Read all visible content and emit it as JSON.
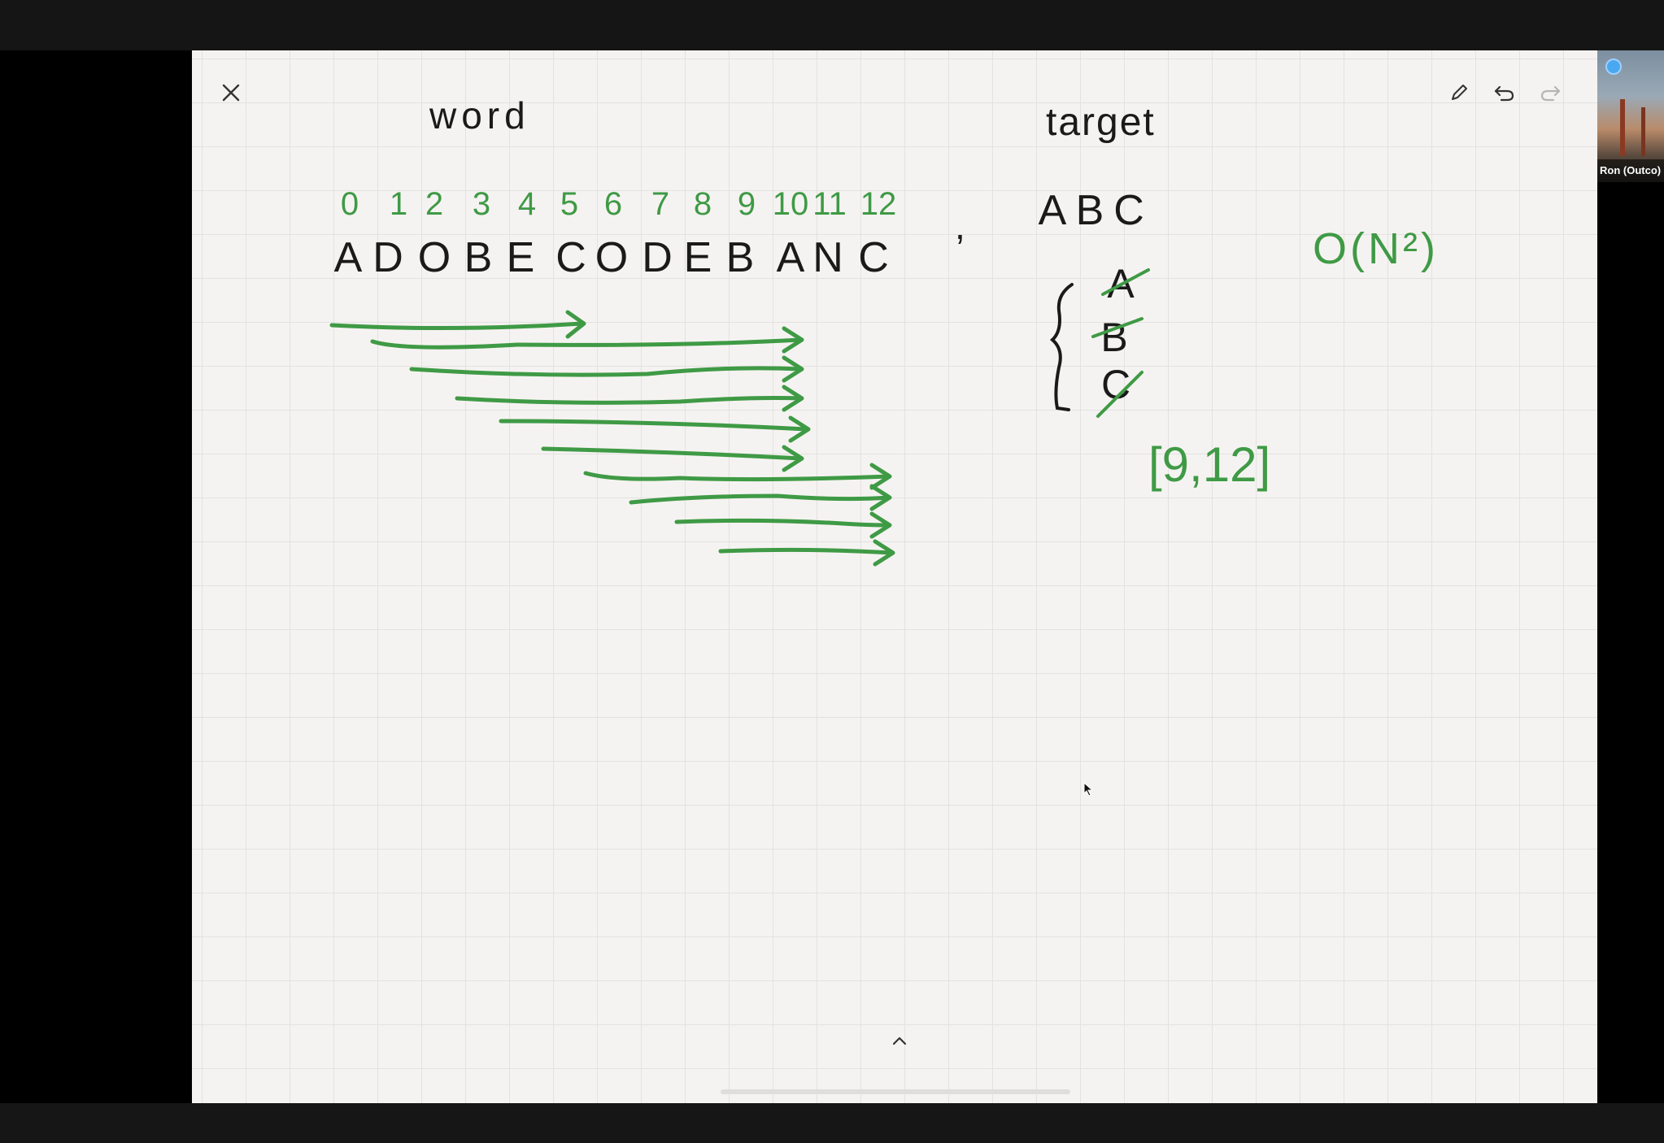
{
  "participant": {
    "name": "Ron (Outco)"
  },
  "whiteboard": {
    "word_label": "word",
    "target_label": "target",
    "index_labels": [
      "0",
      "1",
      "2",
      "3",
      "4",
      "5",
      "6",
      "7",
      "8",
      "9",
      "10",
      "11",
      "12"
    ],
    "word_letters": [
      "A",
      "D",
      "O",
      "B",
      "E",
      "C",
      "O",
      "D",
      "E",
      "B",
      "A",
      "N",
      "C"
    ],
    "separator": ",",
    "target_letters": [
      "A",
      "B",
      "C"
    ],
    "set_letters": [
      "A",
      "B",
      "C"
    ],
    "result": "[9,12]",
    "complexity": "O(N²)"
  },
  "toolbar": {
    "close_icon": "close-icon",
    "pen_icon": "pen-icon",
    "undo_icon": "undo-icon",
    "redo_icon": "redo-icon",
    "expand_icon": "chevron-up-icon"
  },
  "colors": {
    "ink_black": "#1a1a1a",
    "ink_green": "#3f9a45",
    "canvas": "#f5f3f1"
  }
}
